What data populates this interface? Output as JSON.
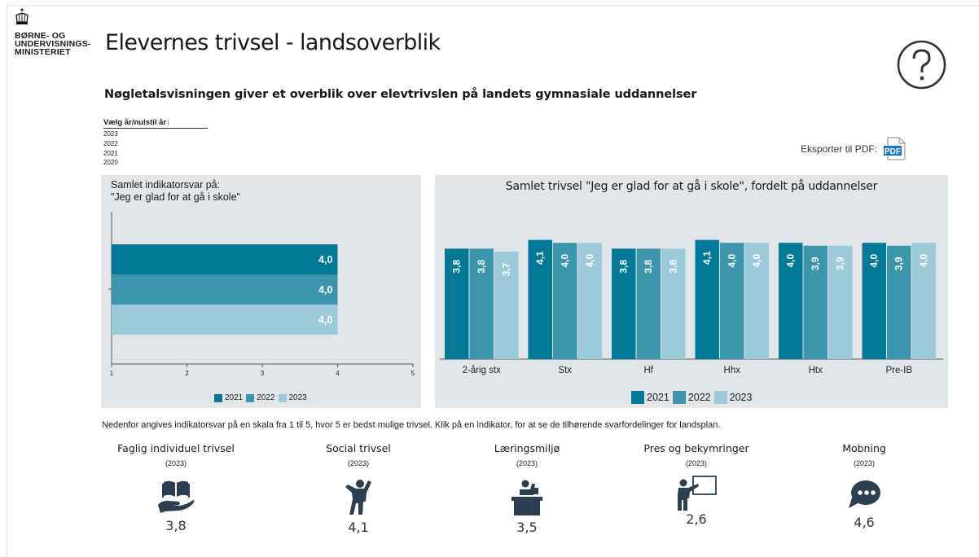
{
  "ministry": {
    "line1": "BØRNE- OG",
    "line2": "UNDERVISNINGS-",
    "line3": "MINISTERIET"
  },
  "title": "Elevernes trivsel - landsoverblik",
  "subtitle": "Nøgletalsvisningen giver et overblik over elevtrivslen på landets gymnasiale uddannelser",
  "year_selector": {
    "header": "Vælg år/nulstil år↓",
    "years": [
      "2023",
      "2022",
      "2021",
      "2020"
    ],
    "selected": "2023"
  },
  "export_label": "Eksporter til PDF:",
  "pdf_icon_text": "PDF",
  "colors": {
    "y2021": "#007a97",
    "y2022": "#3b95ab",
    "y2023": "#9ccad8",
    "panel": "#e3e6e9",
    "icon": "#2c3e4f",
    "pdf": "#1d75c5"
  },
  "chart_data": [
    {
      "type": "bar",
      "orientation": "horizontal",
      "title": "Samlet indikatorsvar på:",
      "subtitle": "\"Jeg er glad for at gå i skole\"",
      "categories": [
        ""
      ],
      "xlim": [
        1,
        5
      ],
      "x_ticks": [
        "1",
        "2",
        "3",
        "4",
        "5"
      ],
      "series": [
        {
          "name": "2021",
          "values": [
            4.0
          ],
          "labels": [
            "4,0"
          ]
        },
        {
          "name": "2022",
          "values": [
            4.0
          ],
          "labels": [
            "4,0"
          ]
        },
        {
          "name": "2023",
          "values": [
            4.0
          ],
          "labels": [
            "4,0"
          ]
        }
      ],
      "legend": [
        "2021",
        "2022",
        "2023"
      ],
      "legend_position": "bottom"
    },
    {
      "type": "bar",
      "title": "Samlet trivsel \"Jeg er glad for at gå i skole\", fordelt på uddannelser",
      "categories": [
        "2-årig stx",
        "Stx",
        "Hf",
        "Hhx",
        "Htx",
        "Pre-IB"
      ],
      "ylim": [
        0,
        5
      ],
      "series": [
        {
          "name": "2021",
          "values": [
            3.8,
            4.1,
            3.8,
            4.1,
            4.0,
            4.0
          ],
          "labels": [
            "3,8",
            "4,1",
            "3,8",
            "4,1",
            "4,0",
            "4,0"
          ]
        },
        {
          "name": "2022",
          "values": [
            3.8,
            4.0,
            3.8,
            4.0,
            3.9,
            3.9
          ],
          "labels": [
            "3,8",
            "4,0",
            "3,8",
            "4,0",
            "3,9",
            "3,9"
          ]
        },
        {
          "name": "2023",
          "values": [
            3.7,
            4.0,
            3.8,
            4.0,
            3.9,
            4.0
          ],
          "labels": [
            "3,7",
            "4,0",
            "3,8",
            "4,0",
            "3,9",
            "4,0"
          ]
        }
      ],
      "legend": [
        "2021",
        "2022",
        "2023"
      ],
      "legend_position": "bottom"
    }
  ],
  "note": "Nedenfor angives indikatorsvar på en skala fra 1 til 5, hvor 5 er bedst mulige trivsel. Klik på en indikator, for at se de tilhørende svarfordelinger for landsplan.",
  "indicators": [
    {
      "name": "Faglig individuel trivsel",
      "year": "(2023)",
      "value": "3,8",
      "icon": "book-hand-icon"
    },
    {
      "name": "Social trivsel",
      "year": "(2023)",
      "value": "4,1",
      "icon": "person-jumping-icon"
    },
    {
      "name": "Læringsmiljø",
      "year": "(2023)",
      "value": "3,5",
      "icon": "student-desk-icon"
    },
    {
      "name": "Pres og bekymringer",
      "year": "(2023)",
      "value": "2,6",
      "icon": "teacher-board-icon"
    },
    {
      "name": "Mobning",
      "year": "(2023)",
      "value": "4,6",
      "icon": "speech-bubble-icon"
    }
  ]
}
